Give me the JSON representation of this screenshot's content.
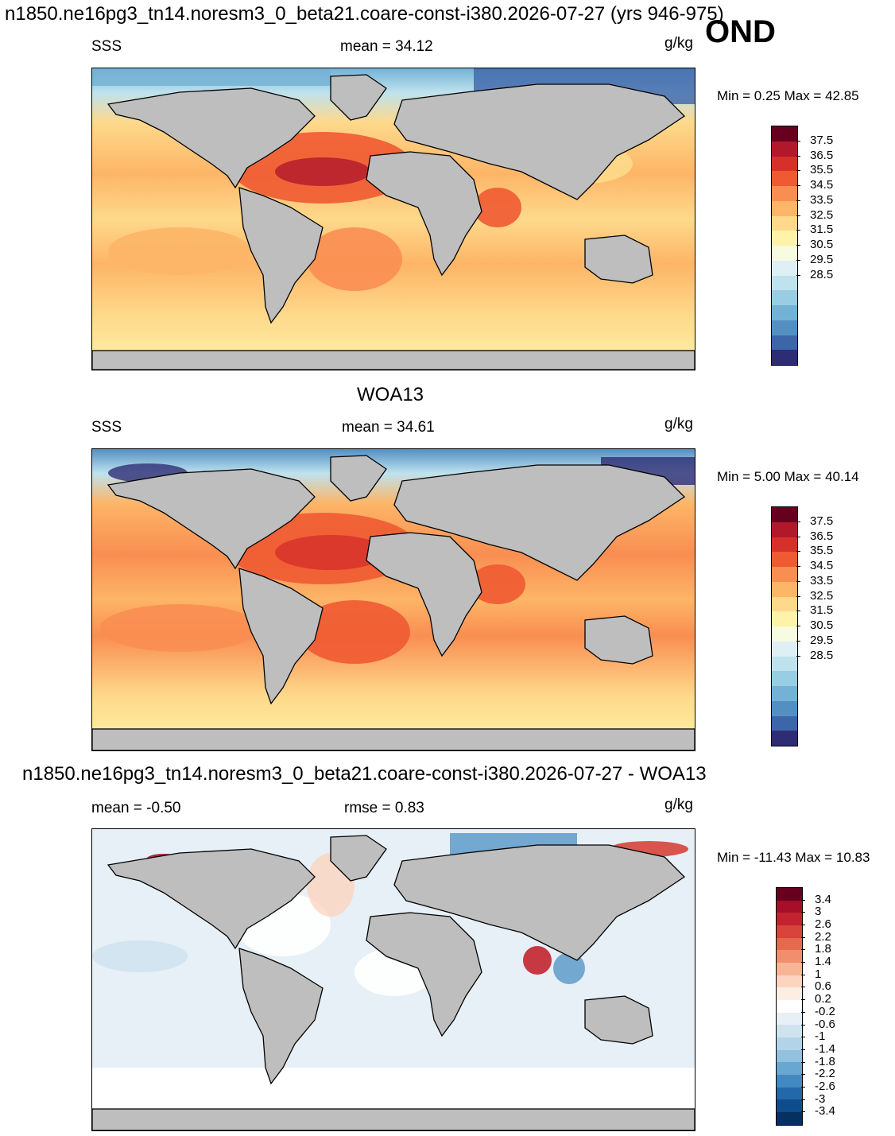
{
  "header": {
    "run_title": "n1850.ne16pg3_tn14.noresm3_0_beta21.coare-const-i380.2026-07-27 (yrs 946-975)",
    "season": "OND"
  },
  "panels": [
    {
      "id": "model",
      "title": "",
      "variable": "SSS",
      "stat_left": "",
      "stat_center": "mean =  34.12",
      "units": "g/kg",
      "min_max": "Min =   0.25 Max =  42.85"
    },
    {
      "id": "obs",
      "title": "WOA13",
      "variable": "SSS",
      "stat_left": "",
      "stat_center": "mean =  34.61",
      "units": "g/kg",
      "min_max": "Min =   5.00 Max =  40.14"
    },
    {
      "id": "diff",
      "title": "n1850.ne16pg3_tn14.noresm3_0_beta21.coare-const-i380.2026-07-27 - WOA13",
      "variable": "",
      "stat_left": "mean =  -0.50",
      "stat_center": "rmse =   0.83",
      "units": "g/kg",
      "min_max": "Min = -11.43 Max =  10.83"
    }
  ],
  "colorbars": {
    "abs": {
      "labels": [
        "37.5",
        "36.5",
        "35.5",
        "34.5",
        "33.5",
        "32.5",
        "31.5",
        "30.5",
        "29.5",
        "28.5"
      ],
      "colors": [
        "#67001f",
        "#b2182b",
        "#d6302a",
        "#ef5a32",
        "#f98e52",
        "#fdb567",
        "#fed98b",
        "#fff2a9",
        "#f7fbe0",
        "#deeff5",
        "#bee2ee",
        "#99cde3",
        "#74b2d5",
        "#548fc2",
        "#3d65a9",
        "#2e2d74"
      ]
    },
    "diff": {
      "labels": [
        "3.4",
        "3",
        "2.6",
        "2.2",
        "1.8",
        "1.4",
        "1",
        "0.6",
        "0.2",
        "-0.2",
        "-0.6",
        "-1",
        "-1.4",
        "-1.8",
        "-2.2",
        "-2.6",
        "-3",
        "-3.4"
      ],
      "colors": [
        "#67001f",
        "#a50f27",
        "#c2242f",
        "#d6443c",
        "#e46a4e",
        "#f08e6e",
        "#f8b596",
        "#fcd4bf",
        "#fdeee4",
        "#ffffff",
        "#e6f0f6",
        "#cfe3ef",
        "#b3d4e8",
        "#92c0dd",
        "#6aa7d0",
        "#4189c0",
        "#2268aa",
        "#0f4c8c",
        "#053061"
      ]
    }
  }
}
